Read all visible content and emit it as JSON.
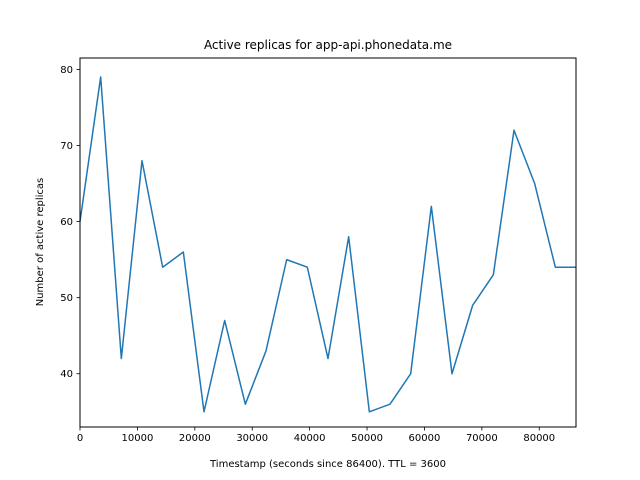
{
  "chart_data": {
    "type": "line",
    "title": "Active replicas for app-api.phonedata.me",
    "xlabel": "Timestamp (seconds since 86400). TTL = 3600",
    "ylabel": "Number of active replicas",
    "xlim": [
      0,
      86400
    ],
    "ylim": [
      33,
      81.5
    ],
    "xticks": [
      0,
      10000,
      20000,
      30000,
      40000,
      50000,
      60000,
      70000,
      80000
    ],
    "xtick_labels": [
      "0",
      "10000",
      "20000",
      "30000",
      "40000",
      "50000",
      "60000",
      "70000",
      "80000"
    ],
    "yticks": [
      40,
      50,
      60,
      70,
      80
    ],
    "ytick_labels": [
      "40",
      "50",
      "60",
      "70",
      "80"
    ],
    "grid": false,
    "color": "#1f77b4",
    "series": [
      {
        "x": [
          0,
          3600,
          7200,
          10800,
          14400,
          18000,
          21600,
          25200,
          28800,
          32400,
          36000,
          39600,
          43200,
          46800,
          50400,
          54000,
          57600,
          61200,
          64800,
          68400,
          72000,
          75600,
          79200,
          82800,
          86400
        ],
        "values": [
          60,
          79,
          42,
          68,
          54,
          56,
          35,
          47,
          36,
          43,
          55,
          54,
          42,
          58,
          35,
          36,
          40,
          62,
          40,
          49,
          53,
          72,
          65,
          54,
          54
        ]
      }
    ]
  }
}
